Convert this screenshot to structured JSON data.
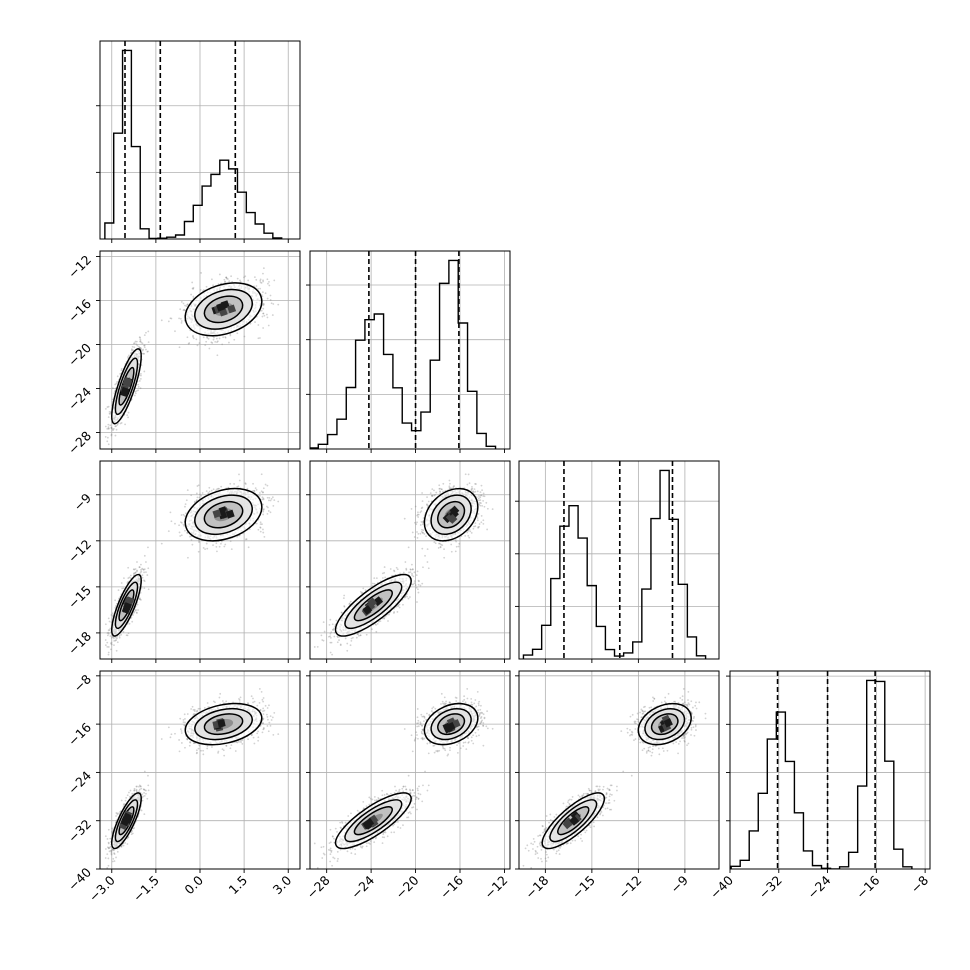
{
  "chart_data": {
    "type": "corner",
    "title": "",
    "n_params": 4,
    "params": [
      {
        "index": 0,
        "label": "",
        "range": [
          -3.4,
          3.4
        ],
        "ticks": [
          -3.0,
          -1.5,
          0.0,
          1.5,
          3.0
        ],
        "tick_labels": [
          "−3.0",
          "−1.5",
          "0.0",
          "1.5",
          "3.0"
        ]
      },
      {
        "index": 1,
        "label": "",
        "range": [
          -29.5,
          -11.5
        ],
        "ticks": [
          -28,
          -24,
          -20,
          -16,
          -12
        ],
        "tick_labels": [
          "−28",
          "−24",
          "−20",
          "−16",
          "−12"
        ]
      },
      {
        "index": 2,
        "label": "",
        "range": [
          -19.7,
          -6.8
        ],
        "ticks": [
          -18,
          -15,
          -12,
          -9
        ],
        "tick_labels": [
          "−18",
          "−15",
          "−12",
          "−9"
        ]
      },
      {
        "index": 3,
        "label": "",
        "range": [
          -40,
          -7.2
        ],
        "ticks": [
          -40,
          -32,
          -24,
          -16,
          -8
        ],
        "tick_labels": [
          "−40",
          "−32",
          "−24",
          "−16",
          "−8"
        ]
      }
    ],
    "modes": [
      {
        "weight": 0.5,
        "means": [
          -2.5,
          -23.8,
          -16.2,
          -32.0
        ],
        "sds": [
          0.25,
          1.7,
          1.0,
          2.3
        ],
        "corr": 0.8
      },
      {
        "weight": 0.5,
        "means": [
          0.8,
          -16.8,
          -10.3,
          -16.0
        ],
        "sds": [
          0.65,
          1.2,
          0.85,
          1.7
        ],
        "corr": 0.3
      }
    ],
    "quantiles": {
      "levels": [
        0.16,
        0.5,
        0.84
      ],
      "values": [
        [
          -2.55,
          -1.35,
          1.2
        ],
        [
          -24.2,
          -20.0,
          -16.1
        ],
        [
          -16.8,
          -13.2,
          -9.8
        ],
        [
          -32.2,
          -24.0,
          -16.2
        ]
      ]
    },
    "histogram_bins": 20,
    "grid": true,
    "contour_levels": 3,
    "scatter_color": "#7f7f7f",
    "line_color": "#000000"
  }
}
